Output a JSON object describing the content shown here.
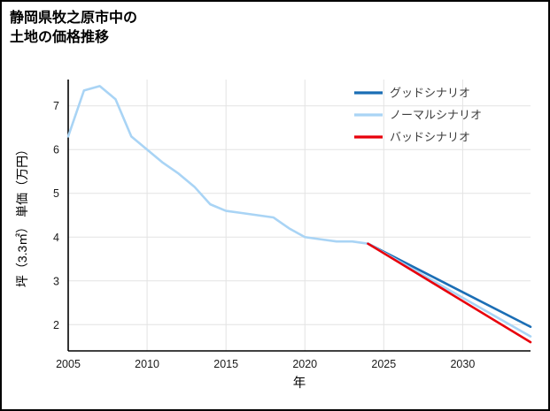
{
  "page": {
    "title_line1": "静岡県牧之原市中の",
    "title_line2": "土地の価格推移"
  },
  "chart_data": {
    "type": "line",
    "title": "静岡県牧之原市中の土地の価格推移",
    "xlabel": "年",
    "ylabel": "坪（3.3㎡） 単価（万円）",
    "xlim": [
      2005,
      2034.3
    ],
    "ylim": [
      1.4,
      7.6
    ],
    "xticks": [
      2005,
      2010,
      2015,
      2020,
      2025,
      2030
    ],
    "yticks": [
      2,
      3,
      4,
      5,
      6,
      7
    ],
    "grid": true,
    "grid_color": "#e3e3e3",
    "axis_color": "#000000",
    "tick_label_color": "#1a1a1a",
    "legend_position": "upper right",
    "series": [
      {
        "id": "historical",
        "label": "",
        "color": "#a9d4f5",
        "x": [
          2005,
          2006,
          2007,
          2008,
          2009,
          2010,
          2011,
          2012,
          2013,
          2014,
          2015,
          2016,
          2017,
          2018,
          2019,
          2020,
          2021,
          2022,
          2023,
          2024
        ],
        "y": [
          6.3,
          7.35,
          7.45,
          7.15,
          6.3,
          6.0,
          5.7,
          5.45,
          5.15,
          4.75,
          4.6,
          4.55,
          4.5,
          4.45,
          4.2,
          4.0,
          3.95,
          3.9,
          3.9,
          3.85
        ]
      },
      {
        "id": "good-scenario",
        "label": "グッドシナリオ",
        "color": "#1b6eb5",
        "x": [
          2024,
          2034.3
        ],
        "y": [
          3.85,
          1.95
        ]
      },
      {
        "id": "normal-scenario",
        "label": "ノーマルシナリオ",
        "color": "#a9d4f5",
        "x": [
          2024,
          2034.3
        ],
        "y": [
          3.85,
          1.73
        ]
      },
      {
        "id": "bad-scenario",
        "label": "バッドシナリオ",
        "color": "#e8000b",
        "x": [
          2024,
          2034.3
        ],
        "y": [
          3.85,
          1.6
        ]
      }
    ],
    "legend": [
      {
        "label": "グッドシナリオ",
        "color": "#1b6eb5"
      },
      {
        "label": "ノーマルシナリオ",
        "color": "#a9d4f5"
      },
      {
        "label": "バッドシナリオ",
        "color": "#e8000b"
      }
    ]
  }
}
